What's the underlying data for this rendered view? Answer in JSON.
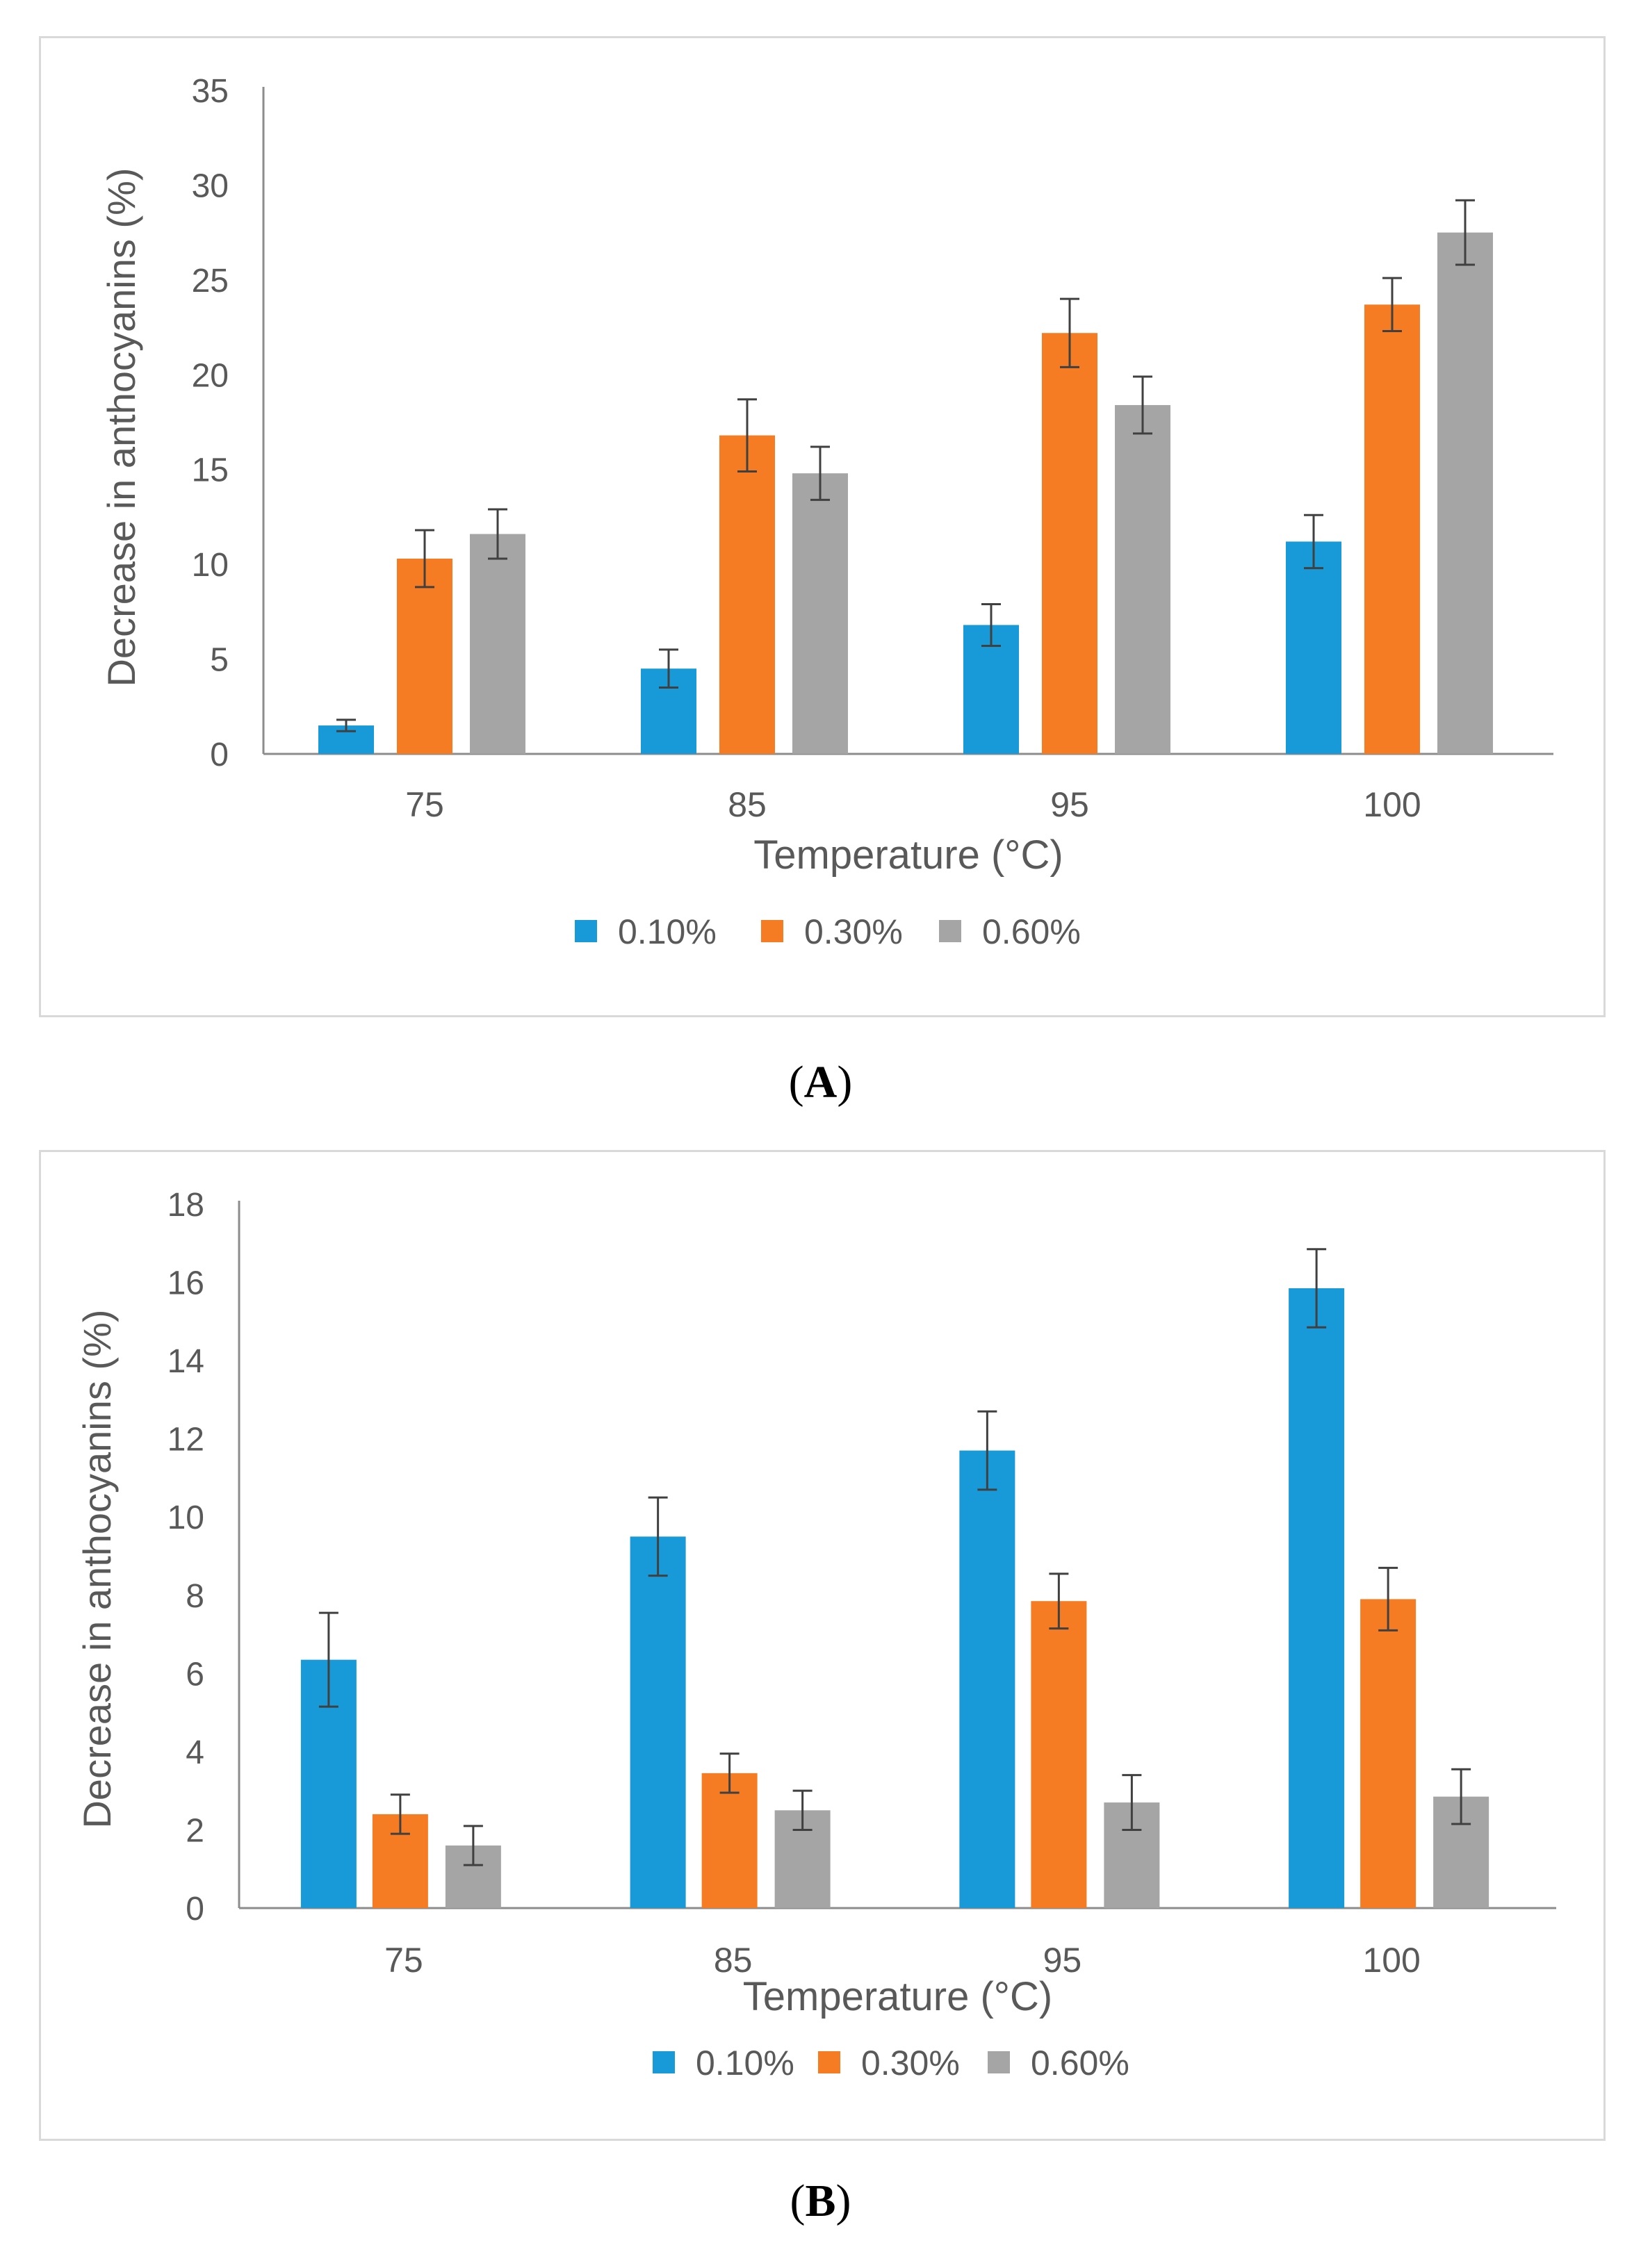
{
  "colors": {
    "series_1": "#189ad8",
    "series_2": "#f67c24",
    "series_3": "#a5a5a5",
    "axis": "#8c8c8c",
    "text": "#595959",
    "error": "#404040"
  },
  "captions": {
    "a": "A",
    "b": "B"
  },
  "chart_data": [
    {
      "type": "bar",
      "panel": "A",
      "categories": [
        "75",
        "85",
        "95",
        "100"
      ],
      "xlabel": "Temperature (°C)",
      "ylabel": "Decrease in anthocyanins (%)",
      "ylim": [
        0,
        35
      ],
      "yticks": [
        "0",
        "5",
        "10",
        "15",
        "20",
        "25",
        "30",
        "35"
      ],
      "legend_position": "bottom",
      "grid": false,
      "series": [
        {
          "name": "0.10%",
          "values": [
            1.5,
            4.5,
            6.8,
            11.2
          ],
          "errors": [
            0.3,
            1.0,
            1.1,
            1.4
          ]
        },
        {
          "name": "0.30%",
          "values": [
            10.3,
            16.8,
            22.2,
            23.7
          ],
          "errors": [
            1.5,
            1.9,
            1.8,
            1.4
          ]
        },
        {
          "name": "0.60%",
          "values": [
            11.6,
            14.8,
            18.4,
            27.5
          ],
          "errors": [
            1.3,
            1.4,
            1.5,
            1.7
          ]
        }
      ]
    },
    {
      "type": "bar",
      "panel": "B",
      "categories": [
        "75",
        "85",
        "95",
        "100"
      ],
      "xlabel": "Temperature (°C)",
      "ylabel": "Decrease in anthocyanins (%)",
      "ylim": [
        0,
        18
      ],
      "yticks": [
        "0",
        "2",
        "4",
        "6",
        "8",
        "10",
        "12",
        "14",
        "16",
        "18"
      ],
      "legend_position": "bottom",
      "grid": false,
      "series": [
        {
          "name": "0.10%",
          "values": [
            6.35,
            9.5,
            11.7,
            15.85
          ],
          "errors": [
            1.2,
            1.0,
            1.0,
            1.0
          ]
        },
        {
          "name": "0.30%",
          "values": [
            2.4,
            3.45,
            7.85,
            7.9
          ],
          "errors": [
            0.5,
            0.5,
            0.7,
            0.8
          ]
        },
        {
          "name": "0.60%",
          "values": [
            1.6,
            2.5,
            2.7,
            2.85
          ],
          "errors": [
            0.5,
            0.5,
            0.7,
            0.7
          ]
        }
      ]
    }
  ]
}
